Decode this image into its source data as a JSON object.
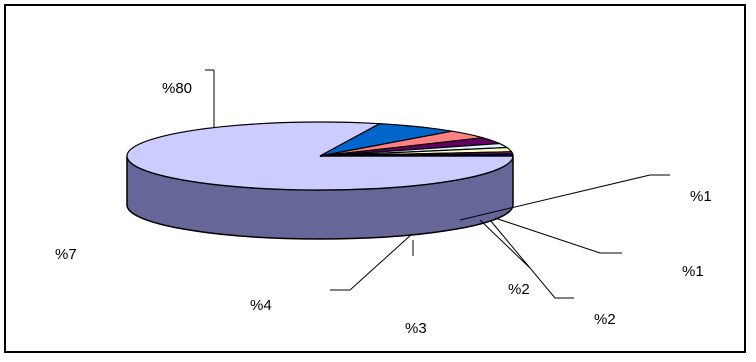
{
  "chart_data": {
    "type": "pie",
    "three_d": true,
    "title": "",
    "slices": [
      {
        "label": "%80",
        "value": 80,
        "top_color": "#ccccff",
        "side_color": "#666699"
      },
      {
        "label": "%7",
        "value": 7,
        "top_color": "#0066cc",
        "side_color": "#003366"
      },
      {
        "label": "%4",
        "value": 4,
        "top_color": "#ff8080",
        "side_color": "#804040"
      },
      {
        "label": "%3",
        "value": 3,
        "top_color": "#660066",
        "side_color": "#330033"
      },
      {
        "label": "%2",
        "value": 2,
        "top_color": "#e0f0ff",
        "side_color": "#669999"
      },
      {
        "label": "%2",
        "value": 2,
        "top_color": "#ffffcc",
        "side_color": "#808066"
      },
      {
        "label": "%1",
        "value": 1,
        "top_color": "#993366",
        "side_color": "#4d1a33"
      },
      {
        "label": "%1",
        "value": 1,
        "top_color": "#000080",
        "side_color": "#000040"
      }
    ],
    "legend": "none",
    "grid": false
  }
}
